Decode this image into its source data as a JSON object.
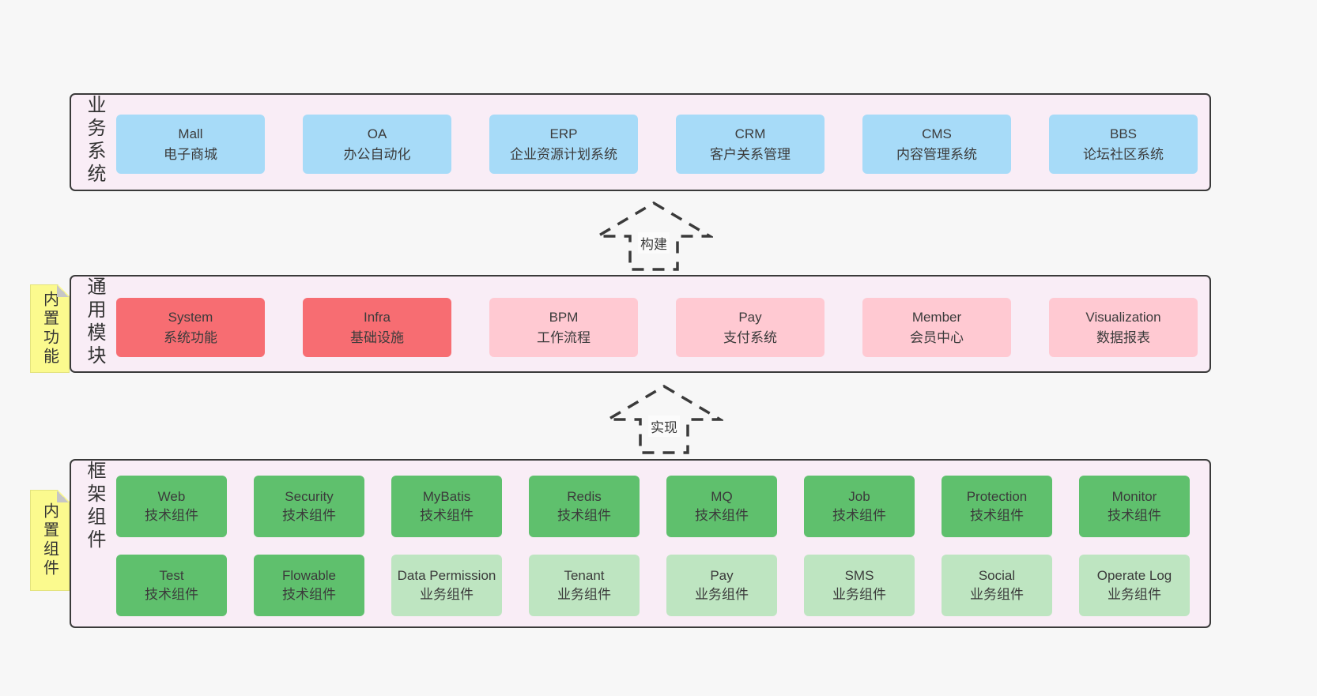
{
  "colors": {
    "page_bg": "#f7f7f7",
    "band_bg": "#f9edf6",
    "line": "#3a3a3a",
    "blue": "#a7dbf8",
    "red": "#f76d72",
    "pink": "#ffc9d2",
    "green": "#5fc06d",
    "lightgreen": "#bee5c1",
    "note_yellow": "#fbfa8e",
    "fold_gray": "#c6c6c6"
  },
  "arrows": [
    {
      "label": "构建"
    },
    {
      "label": "实现"
    }
  ],
  "bands": [
    {
      "label": "业务系统",
      "note": null,
      "rows": [
        [
          {
            "name": "Mall",
            "subtitle": "电子商城",
            "variant": "blue"
          },
          {
            "name": "OA",
            "subtitle": "办公自动化",
            "variant": "blue"
          },
          {
            "name": "ERP",
            "subtitle": "企业资源计划系统",
            "variant": "blue"
          },
          {
            "name": "CRM",
            "subtitle": "客户关系管理",
            "variant": "blue"
          },
          {
            "name": "CMS",
            "subtitle": "内容管理系统",
            "variant": "blue"
          },
          {
            "name": "BBS",
            "subtitle": "论坛社区系统",
            "variant": "blue"
          }
        ]
      ]
    },
    {
      "label": "通用模块",
      "note": "内置功能",
      "rows": [
        [
          {
            "name": "System",
            "subtitle": "系统功能",
            "variant": "red"
          },
          {
            "name": "Infra",
            "subtitle": "基础设施",
            "variant": "red"
          },
          {
            "name": "BPM",
            "subtitle": "工作流程",
            "variant": "pink"
          },
          {
            "name": "Pay",
            "subtitle": "支付系统",
            "variant": "pink"
          },
          {
            "name": "Member",
            "subtitle": "会员中心",
            "variant": "pink"
          },
          {
            "name": "Visualization",
            "subtitle": "数据报表",
            "variant": "pink"
          }
        ]
      ]
    },
    {
      "label": "框架组件",
      "note": "内置组件",
      "rows": [
        [
          {
            "name": "Web",
            "subtitle": "技术组件",
            "variant": "green"
          },
          {
            "name": "Security",
            "subtitle": "技术组件",
            "variant": "green"
          },
          {
            "name": "MyBatis",
            "subtitle": "技术组件",
            "variant": "green"
          },
          {
            "name": "Redis",
            "subtitle": "技术组件",
            "variant": "green"
          },
          {
            "name": "MQ",
            "subtitle": "技术组件",
            "variant": "green"
          },
          {
            "name": "Job",
            "subtitle": "技术组件",
            "variant": "green"
          },
          {
            "name": "Protection",
            "subtitle": "技术组件",
            "variant": "green"
          },
          {
            "name": "Monitor",
            "subtitle": "技术组件",
            "variant": "green"
          }
        ],
        [
          {
            "name": "Test",
            "subtitle": "技术组件",
            "variant": "green"
          },
          {
            "name": "Flowable",
            "subtitle": "技术组件",
            "variant": "green"
          },
          {
            "name": "Data Permission",
            "subtitle": "业务组件",
            "variant": "lightgreen"
          },
          {
            "name": "Tenant",
            "subtitle": "业务组件",
            "variant": "lightgreen"
          },
          {
            "name": "Pay",
            "subtitle": "业务组件",
            "variant": "lightgreen"
          },
          {
            "name": "SMS",
            "subtitle": "业务组件",
            "variant": "lightgreen"
          },
          {
            "name": "Social",
            "subtitle": "业务组件",
            "variant": "lightgreen"
          },
          {
            "name": "Operate Log",
            "subtitle": "业务组件",
            "variant": "lightgreen"
          }
        ]
      ]
    }
  ]
}
